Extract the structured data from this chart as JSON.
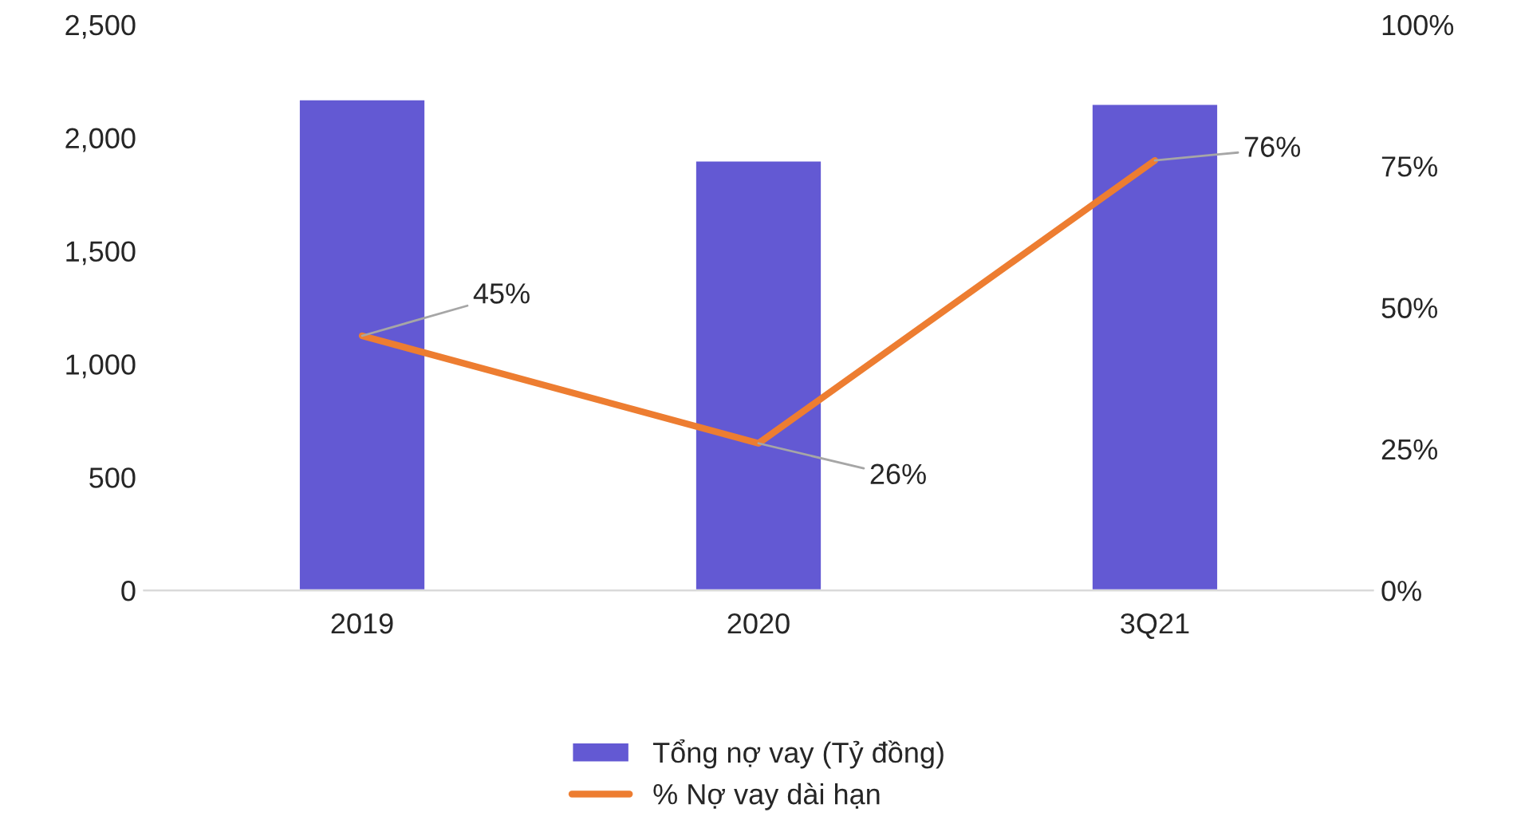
{
  "chart_data": {
    "type": "bar",
    "categories": [
      "2019",
      "2020",
      "3Q21"
    ],
    "series": [
      {
        "name": "Tổng nợ vay (Tỷ đồng)",
        "color": "#6359d3",
        "values": [
          2170,
          1900,
          2150
        ]
      },
      {
        "name": "% Nợ vay dài hạn",
        "type": "line",
        "axis": "y2",
        "color": "#ed7d31",
        "values": [
          45,
          26,
          76
        ],
        "value_labels": [
          "45%",
          "26%",
          "76%"
        ]
      }
    ],
    "ylim": [
      0,
      2500
    ],
    "yticks": [
      0,
      500,
      {
        "value": 1000,
        "label": "1,000"
      },
      {
        "value": 1500,
        "label": "1,500"
      },
      {
        "value": 2000,
        "label": "2,000"
      },
      {
        "value": 2500,
        "label": "2,500"
      }
    ],
    "y2lim": [
      0,
      100
    ],
    "y2ticks": [
      {
        "value": 0,
        "label": "0%"
      },
      {
        "value": 25,
        "label": "25%"
      },
      {
        "value": 50,
        "label": "50%"
      },
      {
        "value": 75,
        "label": "75%"
      },
      {
        "value": 100,
        "label": "100%"
      }
    ],
    "grid": false,
    "legend": "bottom",
    "marker": "none",
    "line_style": "solid"
  }
}
